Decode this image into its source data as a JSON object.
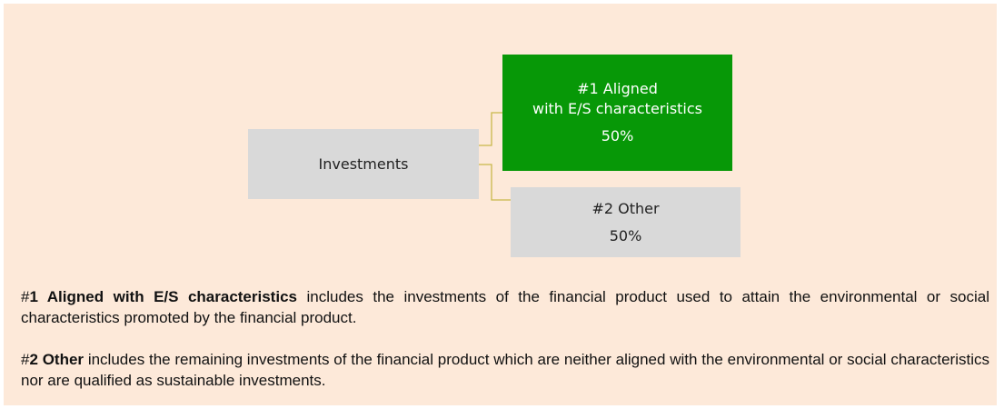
{
  "nodes": [
    {
      "label": [
        "Investments"
      ]
    },
    {
      "label": [
        "#1 Aligned",
        "with E/S characteristics"
      ],
      "percent": "50%"
    },
    {
      "label": [
        "#2 Other"
      ],
      "percent": "50%"
    }
  ],
  "notes": [
    {
      "hash": "#",
      "term": "1 Aligned with E/S characteristics",
      "text": "includes the investments of the financial product used to attain the environmental or social characteristics promoted by the financial product."
    },
    {
      "hash": "#",
      "term": "2 Other",
      "text": "includes the remaining investments of the financial product which are neither aligned with the environmental or social characteristics nor are qualified as sustainable investments."
    }
  ]
}
